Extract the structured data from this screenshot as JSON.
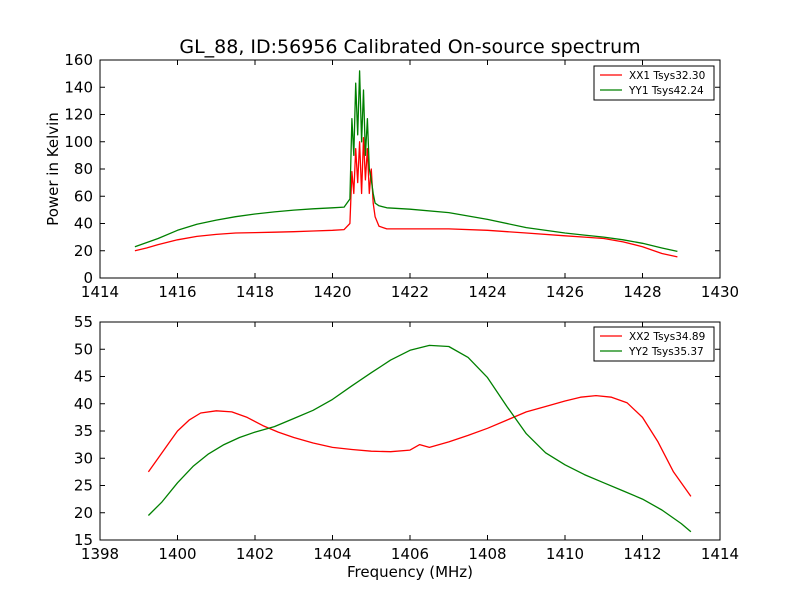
{
  "title": "GL_88, ID:56956 Calibrated On-source spectrum",
  "xlabel": "Frequency (MHz)",
  "ylabel": "Power in Kelvin",
  "colors": {
    "xx": "#ff0000",
    "yy": "#008000"
  },
  "chart_data": [
    {
      "type": "line",
      "xlim": [
        1414,
        1430
      ],
      "ylim": [
        0,
        160
      ],
      "xticks": [
        "1414",
        "1416",
        "1418",
        "1420",
        "1422",
        "1424",
        "1426",
        "1428",
        "1430"
      ],
      "yticks": [
        "0",
        "20",
        "40",
        "60",
        "80",
        "100",
        "120",
        "140",
        "160"
      ],
      "grid": false,
      "legend_position": "top-right",
      "series": [
        {
          "name": "XX1 Tsys32.30",
          "color": "#ff0000",
          "x": [
            1414.9,
            1415.2,
            1415.5,
            1416.0,
            1416.5,
            1417.0,
            1417.5,
            1418.0,
            1418.5,
            1419.0,
            1419.5,
            1420.0,
            1420.3,
            1420.45,
            1420.5,
            1420.55,
            1420.6,
            1420.65,
            1420.7,
            1420.75,
            1420.8,
            1420.85,
            1420.9,
            1420.95,
            1421.0,
            1421.05,
            1421.1,
            1421.2,
            1421.4,
            1422.0,
            1423.0,
            1424.0,
            1425.0,
            1426.0,
            1426.5,
            1427.0,
            1427.5,
            1428.0,
            1428.5,
            1428.9
          ],
          "y": [
            20,
            22,
            24.5,
            28,
            30.5,
            32,
            33,
            33.3,
            33.6,
            34,
            34.5,
            35,
            35.5,
            40,
            78,
            62,
            95,
            70,
            100,
            62,
            103,
            72,
            95,
            62,
            80,
            55,
            45,
            38,
            36,
            36,
            36,
            35,
            33,
            31,
            30,
            29,
            26.5,
            23,
            18,
            15.5
          ]
        },
        {
          "name": "YY1 Tsys42.24",
          "color": "#008000",
          "x": [
            1414.9,
            1415.2,
            1415.5,
            1416.0,
            1416.5,
            1417.0,
            1417.5,
            1418.0,
            1418.5,
            1419.0,
            1419.5,
            1420.0,
            1420.3,
            1420.45,
            1420.5,
            1420.55,
            1420.6,
            1420.65,
            1420.7,
            1420.75,
            1420.8,
            1420.85,
            1420.9,
            1420.95,
            1421.0,
            1421.05,
            1421.1,
            1421.2,
            1421.4,
            1422.0,
            1423.0,
            1424.0,
            1425.0,
            1426.0,
            1426.5,
            1427.0,
            1427.5,
            1428.0,
            1428.5,
            1428.9
          ],
          "y": [
            23,
            26,
            29,
            35,
            39.5,
            42.5,
            45,
            47,
            48.5,
            49.8,
            50.8,
            51.5,
            52,
            58,
            117,
            90,
            143,
            105,
            152,
            100,
            138,
            90,
            117,
            80,
            72,
            62,
            55,
            53,
            51.5,
            50.5,
            48,
            43,
            37,
            33,
            31.5,
            30,
            28,
            25.5,
            22,
            19.5
          ]
        }
      ]
    },
    {
      "type": "line",
      "xlim": [
        1398,
        1414
      ],
      "ylim": [
        15,
        55
      ],
      "xticks": [
        "1398",
        "1400",
        "1402",
        "1404",
        "1406",
        "1408",
        "1410",
        "1412",
        "1414"
      ],
      "yticks": [
        "15",
        "20",
        "25",
        "30",
        "35",
        "40",
        "45",
        "50",
        "55"
      ],
      "grid": false,
      "legend_position": "top-right",
      "series": [
        {
          "name": "XX2 Tsys34.89",
          "color": "#ff0000",
          "x": [
            1399.25,
            1399.5,
            1399.8,
            1400.0,
            1400.3,
            1400.6,
            1401.0,
            1401.4,
            1401.8,
            1402.2,
            1402.6,
            1403.0,
            1403.5,
            1404.0,
            1404.5,
            1405.0,
            1405.5,
            1406.0,
            1406.25,
            1406.5,
            1407.0,
            1407.5,
            1408.0,
            1408.5,
            1409.0,
            1409.5,
            1410.0,
            1410.4,
            1410.8,
            1411.2,
            1411.6,
            1412.0,
            1412.4,
            1412.8,
            1413.25
          ],
          "y": [
            27.5,
            30,
            33,
            35,
            37,
            38.3,
            38.7,
            38.5,
            37.5,
            36,
            34.8,
            33.8,
            32.8,
            32,
            31.6,
            31.3,
            31.2,
            31.5,
            32.5,
            32,
            33,
            34.2,
            35.5,
            37,
            38.5,
            39.5,
            40.5,
            41.2,
            41.5,
            41.2,
            40.2,
            37.5,
            33,
            27.5,
            23
          ]
        },
        {
          "name": "YY2 Tsys35.37",
          "color": "#008000",
          "x": [
            1399.25,
            1399.6,
            1400.0,
            1400.4,
            1400.8,
            1401.2,
            1401.6,
            1402.0,
            1402.5,
            1403.0,
            1403.5,
            1404.0,
            1404.5,
            1405.0,
            1405.5,
            1406.0,
            1406.5,
            1407.0,
            1407.5,
            1408.0,
            1408.5,
            1409.0,
            1409.5,
            1410.0,
            1410.5,
            1411.0,
            1411.5,
            1412.0,
            1412.5,
            1413.0,
            1413.25
          ],
          "y": [
            19.5,
            22,
            25.5,
            28.5,
            30.8,
            32.5,
            33.8,
            34.8,
            35.8,
            37.3,
            38.8,
            40.8,
            43.3,
            45.7,
            48,
            49.8,
            50.7,
            50.5,
            48.5,
            44.8,
            39.5,
            34.5,
            31,
            28.8,
            27,
            25.5,
            24,
            22.5,
            20.5,
            18,
            16.5
          ]
        }
      ]
    }
  ]
}
